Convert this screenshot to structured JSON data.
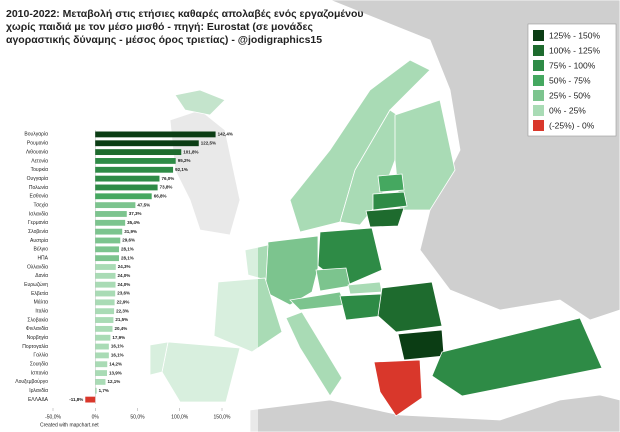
{
  "title": [
    "2010-2022: Μεταβολή στις ετήσιες καθαρές απολαβές ενός εργαζομένου",
    "χωρίς παιδιά με τον μέσο μισθό - πηγή: Eurostat (σε μονάδες",
    "αγοραστικής δύναμης - μέσος όρος τριετίας) - @jodigraphics15"
  ],
  "legend": {
    "items": [
      {
        "label": "125% - 150%",
        "color": "#0b3d14"
      },
      {
        "label": "100% - 125%",
        "color": "#1e6b2e"
      },
      {
        "label": "75% - 100%",
        "color": "#2e8b46"
      },
      {
        "label": "50% - 75%",
        "color": "#45a860"
      },
      {
        "label": "25% - 50%",
        "color": "#7cc48e"
      },
      {
        "label": "0% - 25%",
        "color": "#a9dbb5"
      },
      {
        "label": "(-25%) - 0%",
        "color": "#d9372b"
      }
    ]
  },
  "credit": "Created with mapchart.net",
  "chart_data": {
    "type": "bar",
    "orientation": "horizontal",
    "categories": [
      "Βουλγαρία",
      "Ρουμανία",
      "Λιθουανία",
      "Λετονία",
      "Τουρκία",
      "Ουγγαρία",
      "Πολωνία",
      "Εσθονία",
      "Τσεχία",
      "Ισλανδία",
      "Γερμανία",
      "Σλοβενία",
      "Αυστρία",
      "Βέλγιο",
      "ΗΠΑ",
      "Ολλανδία",
      "Δανία",
      "Ευρωζώνη",
      "Ελβετία",
      "Μάλτα",
      "Ιταλία",
      "Σλοβακία",
      "Φινλανδία",
      "Νορβηγία",
      "Πορτογαλία",
      "Γαλλία",
      "Σουηδία",
      "Ισπανία",
      "Λουξεμβούργο",
      "Ιρλανδία",
      "ΕΛΛΑΔΑ"
    ],
    "values": [
      142.4,
      122.5,
      101.8,
      95.2,
      92.1,
      76.0,
      73.8,
      66.8,
      47.5,
      37.3,
      35.4,
      31.9,
      29.6,
      28.1,
      28.1,
      24.3,
      24.0,
      24.0,
      23.6,
      22.9,
      22.3,
      21.5,
      20.4,
      17.9,
      16.1,
      16.1,
      14.2,
      13.9,
      12.1,
      1.7,
      -11.8
    ],
    "value_labels": [
      "142,4%",
      "122,5%",
      "101,8%",
      "95,2%",
      "92,1%",
      "76,0%",
      "73,8%",
      "66,8%",
      "47,5%",
      "37,3%",
      "35,4%",
      "31,9%",
      "29,6%",
      "28,1%",
      "28,1%",
      "24,3%",
      "24,0%",
      "24,0%",
      "23,6%",
      "22,9%",
      "22,3%",
      "21,5%",
      "20,4%",
      "17,9%",
      "16,1%",
      "16,1%",
      "14,2%",
      "13,9%",
      "12,1%",
      "1,7%",
      "-11,8%"
    ],
    "colors": [
      "#0b3d14",
      "#0b3d14",
      "#1e6b2e",
      "#2e8b46",
      "#2e8b46",
      "#2e8b46",
      "#2e8b46",
      "#45a860",
      "#7cc48e",
      "#7cc48e",
      "#7cc48e",
      "#7cc48e",
      "#7cc48e",
      "#7cc48e",
      "#7cc48e",
      "#a9dbb5",
      "#a9dbb5",
      "#a9dbb5",
      "#a9dbb5",
      "#a9dbb5",
      "#a9dbb5",
      "#a9dbb5",
      "#a9dbb5",
      "#a9dbb5",
      "#a9dbb5",
      "#a9dbb5",
      "#a9dbb5",
      "#a9dbb5",
      "#a9dbb5",
      "#a9dbb5",
      "#d9372b"
    ],
    "xlim": [
      -50,
      150
    ],
    "xticks": [
      {
        "value": -50,
        "label": "-50,0%"
      },
      {
        "value": 0,
        "label": "0%"
      },
      {
        "value": 50,
        "label": "50,0%"
      },
      {
        "value": 100,
        "label": "100,0%"
      },
      {
        "value": 150,
        "label": "150,0%"
      }
    ]
  }
}
